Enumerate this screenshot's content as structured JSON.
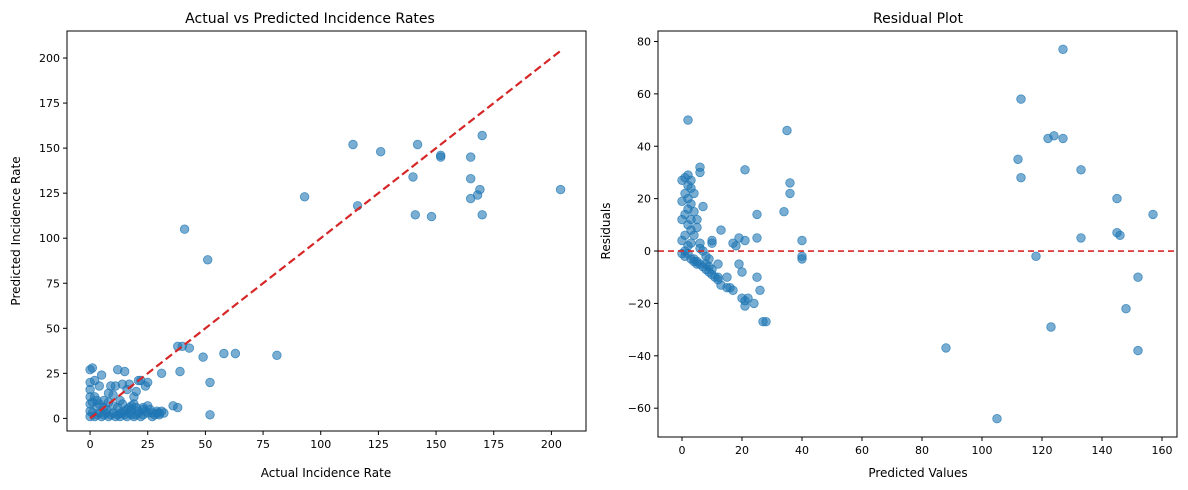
{
  "chart_data": [
    {
      "type": "scatter",
      "title": "Actual vs Predicted Incidence Rates",
      "xlabel": "Actual Incidence Rate",
      "ylabel": "Predicted Incidence Rate",
      "xlim": [
        -10,
        215
      ],
      "ylim": [
        -7,
        215
      ],
      "xticks": [
        0,
        25,
        50,
        75,
        100,
        125,
        150,
        175,
        200
      ],
      "yticks": [
        0,
        25,
        50,
        75,
        100,
        125,
        150,
        175,
        200
      ],
      "point_color": "#1f77b4",
      "reference_line": {
        "x": [
          0,
          204
        ],
        "y": [
          0,
          204
        ],
        "color": "#d62728",
        "style": "dashed"
      },
      "points": [
        [
          204,
          127
        ],
        [
          170,
          157
        ],
        [
          170,
          113
        ],
        [
          169,
          127
        ],
        [
          168,
          124
        ],
        [
          165,
          145
        ],
        [
          165,
          133
        ],
        [
          165,
          122
        ],
        [
          152,
          146
        ],
        [
          152,
          145
        ],
        [
          148,
          112
        ],
        [
          142,
          152
        ],
        [
          141,
          113
        ],
        [
          140,
          134
        ],
        [
          126,
          148
        ],
        [
          116,
          118
        ],
        [
          114,
          152
        ],
        [
          93,
          123
        ],
        [
          81,
          35
        ],
        [
          63,
          36
        ],
        [
          58,
          36
        ],
        [
          52,
          20
        ],
        [
          52,
          2
        ],
        [
          51,
          88
        ],
        [
          49,
          34
        ],
        [
          43,
          39
        ],
        [
          41,
          105
        ],
        [
          40,
          40
        ],
        [
          38,
          40
        ],
        [
          39,
          26
        ],
        [
          38,
          6
        ],
        [
          36,
          7
        ],
        [
          31,
          25
        ],
        [
          30,
          3
        ],
        [
          29,
          4
        ],
        [
          27,
          3
        ],
        [
          25,
          20
        ],
        [
          24,
          18
        ],
        [
          23,
          5
        ],
        [
          22,
          21
        ],
        [
          21,
          21
        ],
        [
          20,
          15
        ],
        [
          19,
          12
        ],
        [
          18,
          5
        ],
        [
          17,
          19
        ],
        [
          16,
          16
        ],
        [
          15,
          26
        ],
        [
          14,
          19
        ],
        [
          13,
          3
        ],
        [
          12,
          27
        ],
        [
          11,
          18
        ],
        [
          10,
          13
        ],
        [
          9,
          18
        ],
        [
          8,
          14
        ],
        [
          7,
          5
        ],
        [
          6,
          10
        ],
        [
          5,
          24
        ],
        [
          4,
          18
        ],
        [
          3,
          7
        ],
        [
          2,
          21
        ],
        [
          2,
          12
        ],
        [
          1,
          28
        ],
        [
          0,
          27
        ],
        [
          0,
          20
        ],
        [
          0,
          16
        ],
        [
          0,
          12
        ],
        [
          0,
          8
        ],
        [
          0,
          4
        ],
        [
          0,
          1
        ],
        [
          1,
          3
        ],
        [
          2,
          1
        ],
        [
          3,
          2
        ],
        [
          4,
          3
        ],
        [
          5,
          1
        ],
        [
          6,
          2
        ],
        [
          7,
          3
        ],
        [
          8,
          1
        ],
        [
          9,
          2
        ],
        [
          10,
          3
        ],
        [
          11,
          1
        ],
        [
          12,
          2
        ],
        [
          13,
          1
        ],
        [
          14,
          3
        ],
        [
          15,
          2
        ],
        [
          16,
          1
        ],
        [
          17,
          3
        ],
        [
          18,
          2
        ],
        [
          19,
          1
        ],
        [
          20,
          2
        ],
        [
          21,
          3
        ],
        [
          22,
          1
        ],
        [
          23,
          2
        ],
        [
          24,
          4
        ],
        [
          25,
          3
        ],
        [
          26,
          5
        ],
        [
          27,
          1
        ],
        [
          28,
          2
        ],
        [
          29,
          3
        ],
        [
          30,
          2
        ],
        [
          31,
          4
        ],
        [
          32,
          3
        ],
        [
          12,
          6
        ],
        [
          14,
          8
        ],
        [
          16,
          5
        ],
        [
          18,
          7
        ],
        [
          20,
          6
        ],
        [
          8,
          9
        ],
        [
          6,
          6
        ],
        [
          4,
          8
        ],
        [
          10,
          7
        ],
        [
          13,
          10
        ],
        [
          15,
          4
        ],
        [
          17,
          6
        ],
        [
          19,
          8
        ],
        [
          21,
          4
        ],
        [
          23,
          6
        ],
        [
          25,
          7
        ],
        [
          3,
          10
        ],
        [
          1,
          9
        ]
      ]
    },
    {
      "type": "scatter",
      "title": "Residual Plot",
      "xlabel": "Predicted Values",
      "ylabel": "Residuals",
      "xlim": [
        -8,
        165
      ],
      "ylim": [
        -71,
        84
      ],
      "xticks": [
        0,
        20,
        40,
        60,
        80,
        100,
        120,
        140,
        160
      ],
      "yticks": [
        -60,
        -40,
        -20,
        0,
        20,
        40,
        60,
        80
      ],
      "point_color": "#1f77b4",
      "reference_line": {
        "y": 0,
        "color": "#d62728",
        "style": "dashed"
      },
      "points": [
        [
          157,
          14
        ],
        [
          152,
          -10
        ],
        [
          152,
          -38
        ],
        [
          148,
          -22
        ],
        [
          146,
          6
        ],
        [
          145,
          7
        ],
        [
          145,
          20
        ],
        [
          133,
          31
        ],
        [
          133,
          5
        ],
        [
          127,
          77
        ],
        [
          127,
          43
        ],
        [
          124,
          44
        ],
        [
          122,
          43
        ],
        [
          123,
          -29
        ],
        [
          118,
          -2
        ],
        [
          113,
          58
        ],
        [
          113,
          28
        ],
        [
          112,
          35
        ],
        [
          105,
          -64
        ],
        [
          88,
          -37
        ],
        [
          40,
          4
        ],
        [
          40,
          -2
        ],
        [
          40,
          -3
        ],
        [
          36,
          26
        ],
        [
          36,
          22
        ],
        [
          35,
          46
        ],
        [
          34,
          15
        ],
        [
          28,
          -27
        ],
        [
          27,
          -27
        ],
        [
          26,
          -15
        ],
        [
          25,
          14
        ],
        [
          25,
          5
        ],
        [
          25,
          -10
        ],
        [
          24,
          -20
        ],
        [
          22,
          -18
        ],
        [
          21,
          -19
        ],
        [
          21,
          -21
        ],
        [
          21,
          31
        ],
        [
          21,
          4
        ],
        [
          20,
          -18
        ],
        [
          20,
          -8
        ],
        [
          19,
          -5
        ],
        [
          19,
          5
        ],
        [
          18,
          2
        ],
        [
          17,
          3
        ],
        [
          17,
          -15
        ],
        [
          16,
          -14
        ],
        [
          15,
          -14
        ],
        [
          15,
          -10
        ],
        [
          13,
          8
        ],
        [
          13,
          -13
        ],
        [
          12,
          -10
        ],
        [
          12,
          -5
        ],
        [
          10,
          4
        ],
        [
          10,
          3
        ],
        [
          10,
          -7
        ],
        [
          9,
          -6
        ],
        [
          8,
          -5
        ],
        [
          7,
          17
        ],
        [
          6,
          30
        ],
        [
          6,
          32
        ],
        [
          5,
          12
        ],
        [
          5,
          -5
        ],
        [
          4,
          -3
        ],
        [
          4,
          22
        ],
        [
          3,
          27
        ],
        [
          3,
          24
        ],
        [
          3,
          18
        ],
        [
          3,
          8
        ],
        [
          2,
          50
        ],
        [
          2,
          29
        ],
        [
          2,
          25
        ],
        [
          2,
          20
        ],
        [
          2,
          10
        ],
        [
          2,
          2
        ],
        [
          1,
          28
        ],
        [
          1,
          22
        ],
        [
          1,
          14
        ],
        [
          1,
          6
        ],
        [
          1,
          0
        ],
        [
          0,
          27
        ],
        [
          0,
          19
        ],
        [
          0,
          12
        ],
        [
          0,
          4
        ],
        [
          0,
          -1
        ],
        [
          1,
          -2
        ],
        [
          2,
          -1
        ],
        [
          3,
          -3
        ],
        [
          4,
          -4
        ],
        [
          5,
          -4
        ],
        [
          6,
          -5
        ],
        [
          7,
          -6
        ],
        [
          8,
          -7
        ],
        [
          9,
          -8
        ],
        [
          10,
          -9
        ],
        [
          11,
          -10
        ],
        [
          12,
          -11
        ],
        [
          4,
          15
        ],
        [
          3,
          12
        ],
        [
          5,
          9
        ],
        [
          6,
          3
        ],
        [
          2,
          16
        ],
        [
          4,
          6
        ],
        [
          3,
          3
        ],
        [
          6,
          1
        ],
        [
          7,
          0
        ],
        [
          8,
          -2
        ],
        [
          9,
          -3
        ]
      ]
    }
  ]
}
